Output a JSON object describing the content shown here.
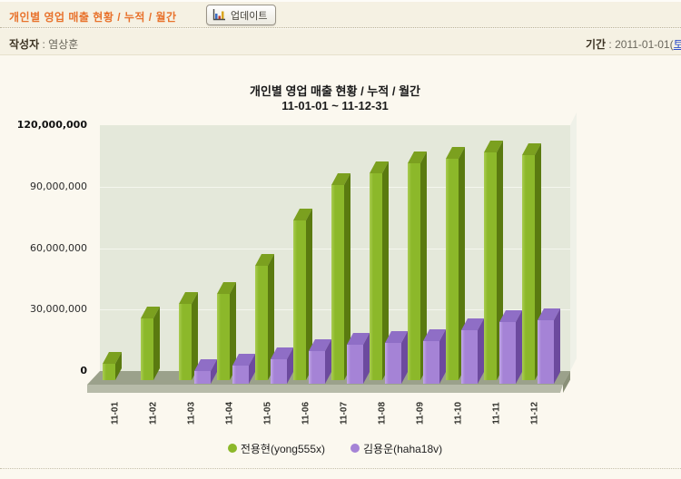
{
  "header": {
    "title": "개인별 영업 매출 현황 / 누적 / 월간",
    "update_button_label": "업데이트",
    "author_label": "작성자",
    "author_separator": " : ",
    "author_value": "염상훈",
    "period_label": "기간",
    "period_separator": " : ",
    "period_value": "2011-01-01(",
    "period_day_link": "토"
  },
  "chart_data": {
    "type": "bar",
    "title": "개인별 영업 매출 현황 / 누적 / 월간",
    "subtitle": "11-01-01 ~ 11-12-31",
    "categories": [
      "11-01",
      "11-02",
      "11-03",
      "11-04",
      "11-05",
      "11-06",
      "11-07",
      "11-08",
      "11-09",
      "11-10",
      "11-11",
      "11-12"
    ],
    "series": [
      {
        "name": "전용현(yong555x)",
        "values": [
          8000000,
          30000000,
          37000000,
          42000000,
          56000000,
          78000000,
          95000000,
          101000000,
          106000000,
          108000000,
          111000000,
          110000000
        ]
      },
      {
        "name": "김용운(haha18v)",
        "values": [
          0,
          0,
          6000000,
          9000000,
          12000000,
          16000000,
          19000000,
          20000000,
          21000000,
          26000000,
          30000000,
          31000000
        ]
      }
    ],
    "ylim": [
      0,
      120000000
    ],
    "yticks": [
      0,
      30000000,
      60000000,
      90000000,
      120000000
    ],
    "ytick_labels": [
      "0",
      "30,000,000",
      "60,000,000",
      "90,000,000",
      "120,000,000"
    ],
    "ytick_bold": [
      true,
      false,
      false,
      false,
      true
    ],
    "grid": true,
    "legend_position": "bottom"
  },
  "colors": {
    "accent_title": "#E8722C",
    "link_blue": "#2B4BC8",
    "plot_background": "#E4E8DA",
    "floor_top": "#9BA18B",
    "green_front": "#8CB82A",
    "green_top": "#7BA01F",
    "green_side": "#5A7A10",
    "green_highlight": "#AACD52",
    "purple_front": "#A583D6",
    "purple_top": "#8F6EC6",
    "purple_side": "#6C4A9E",
    "purple_highlight": "#C3A9E8"
  }
}
